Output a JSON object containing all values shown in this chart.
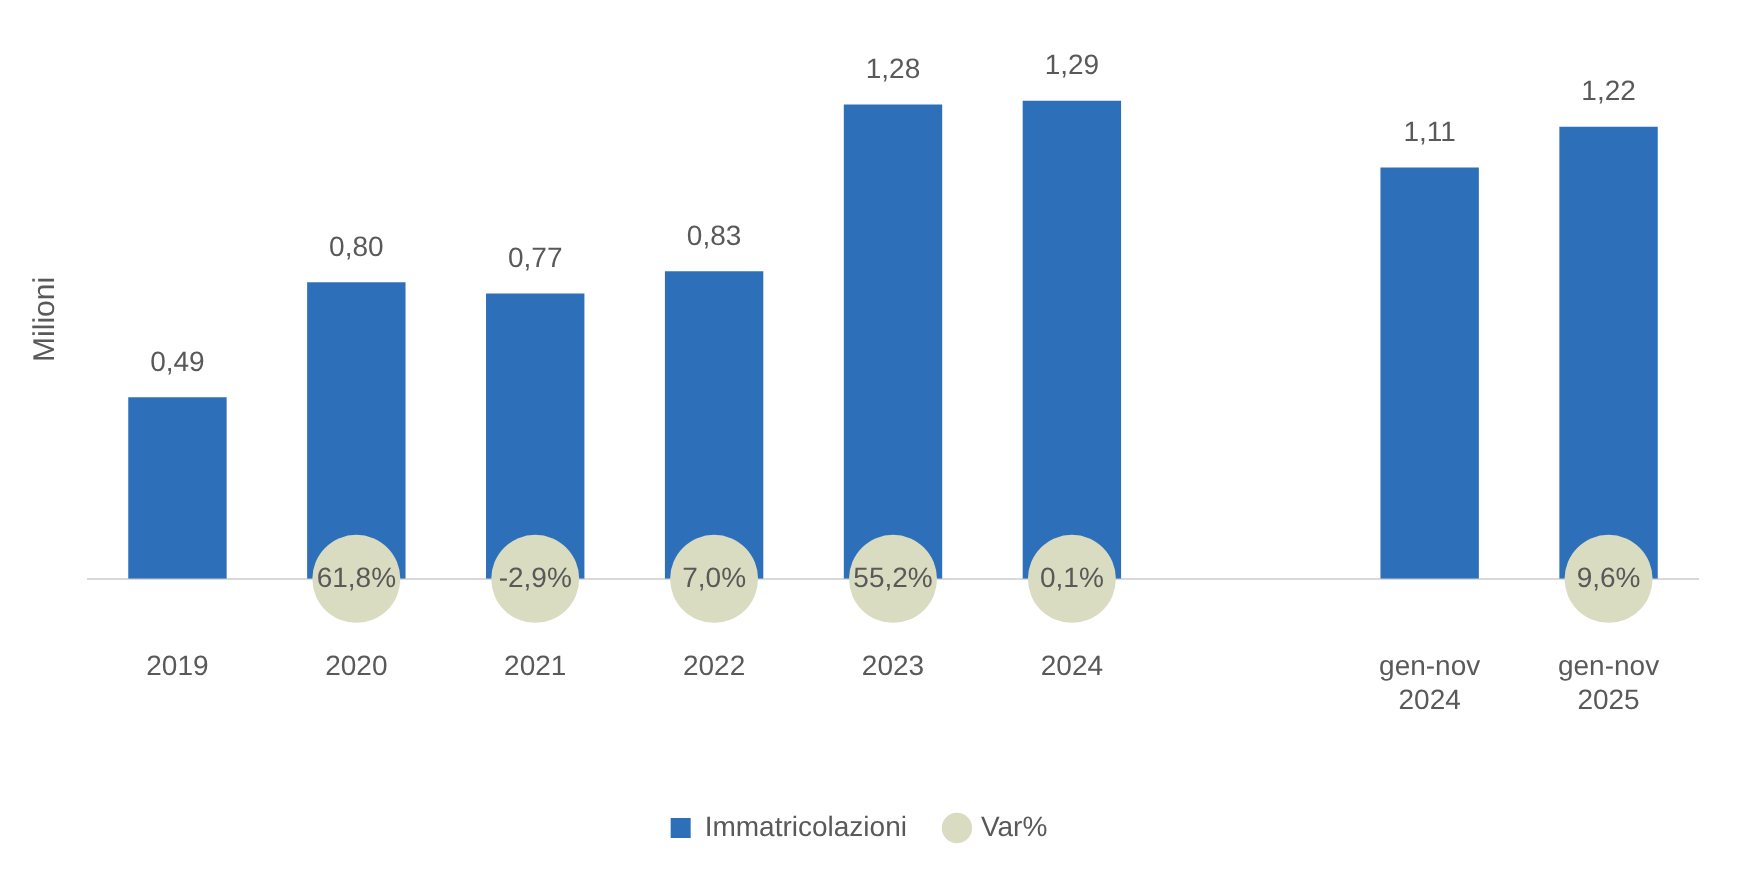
{
  "chart_data": {
    "type": "bar",
    "ylabel": "Milioni",
    "categories": [
      "2019",
      "2020",
      "2021",
      "2022",
      "2023",
      "2024",
      null,
      "gen-nov 2024",
      "gen-nov 2025"
    ],
    "series": [
      {
        "name": "Immatricolazioni",
        "color": "#2e6fba",
        "values": [
          0.49,
          0.8,
          0.77,
          0.83,
          1.28,
          1.29,
          null,
          1.11,
          1.22
        ],
        "value_labels": [
          "0,49",
          "0,80",
          "0,77",
          "0,83",
          "1,28",
          "1,29",
          null,
          "1,11",
          "1,22"
        ]
      },
      {
        "name": "Var%",
        "type": "scatter",
        "color": "#d9dcc0",
        "values": [
          null,
          null,
          null,
          null,
          null,
          null,
          null,
          null,
          null
        ]
      }
    ],
    "annotations": [
      {
        "text": "61,8%",
        "x": "2020"
      },
      {
        "text": "-2,9%",
        "x": "2021"
      },
      {
        "text": "7,0%",
        "x": "2022"
      },
      {
        "text": "55,2%",
        "x": "2023"
      },
      {
        "text": "0,1%",
        "x": "2024"
      },
      {
        "text": "9,6%",
        "x": "gen-nov 2025"
      }
    ],
    "legend": "bottom",
    "grid": false
  }
}
